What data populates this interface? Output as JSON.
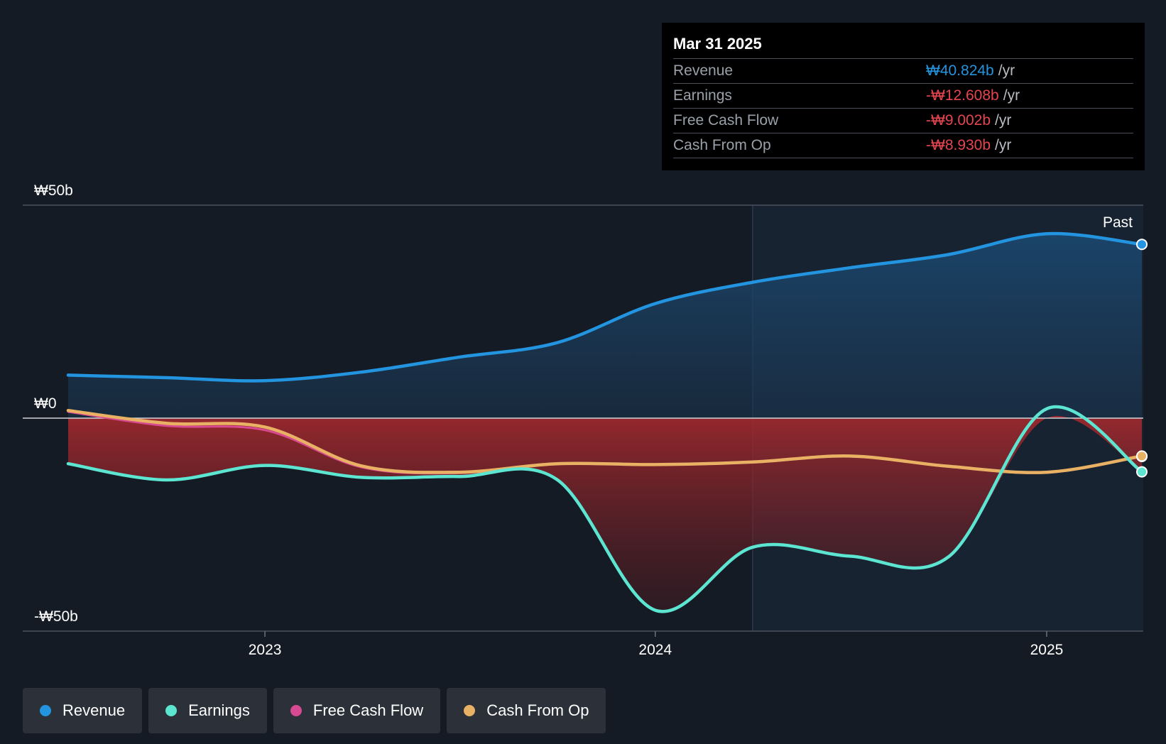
{
  "chart_data": {
    "type": "line",
    "x_ticks": [
      "2023",
      "2024",
      "2025"
    ],
    "y_ticks": [
      "₩50b",
      "₩0",
      "-₩50b"
    ],
    "ylim": [
      -50,
      50
    ],
    "past_label": "Past",
    "series": [
      {
        "name": "Revenue",
        "color": "#2394df",
        "x": [
          "2022-07-01",
          "2022-10-01",
          "2023-01-01",
          "2023-04-01",
          "2023-07-01",
          "2023-10-01",
          "2024-01-01",
          "2024-04-01",
          "2024-07-01",
          "2024-10-01",
          "2025-01-01",
          "2025-03-31"
        ],
        "values": [
          10.1,
          9.5,
          8.8,
          10.8,
          14.3,
          17.7,
          26.9,
          31.9,
          35.3,
          38.4,
          43.3,
          40.8
        ]
      },
      {
        "name": "Earnings",
        "color": "#5ce6d2",
        "x": [
          "2022-07-01",
          "2022-10-01",
          "2023-01-01",
          "2023-04-01",
          "2023-07-01",
          "2023-10-01",
          "2024-01-01",
          "2024-04-01",
          "2024-07-01",
          "2024-10-01",
          "2025-01-01",
          "2025-03-31"
        ],
        "values": [
          -10.7,
          -14.5,
          -11.1,
          -13.9,
          -13.7,
          -14.4,
          -45.1,
          -30.3,
          -32.4,
          -32.6,
          2.2,
          -12.6
        ]
      },
      {
        "name": "Free Cash Flow",
        "color": "#d74990",
        "x": [
          "2022-07-01",
          "2022-10-01",
          "2023-01-01",
          "2023-04-01",
          "2023-07-01",
          "2023-10-01",
          "2024-01-01",
          "2024-04-01",
          "2024-07-01",
          "2024-10-01",
          "2025-01-01",
          "2025-03-31"
        ],
        "values": [
          1.5,
          -1.8,
          -2.8,
          -11.5,
          -12.9,
          -10.8,
          -11.0,
          -10.4,
          -9.0,
          -11.4,
          -12.8,
          -9.0
        ]
      },
      {
        "name": "Cash From Op",
        "color": "#e9b163",
        "x": [
          "2022-07-01",
          "2022-10-01",
          "2023-01-01",
          "2023-04-01",
          "2023-07-01",
          "2023-10-01",
          "2024-01-01",
          "2024-04-01",
          "2024-07-01",
          "2024-10-01",
          "2025-01-01",
          "2025-03-31"
        ],
        "values": [
          1.8,
          -1.2,
          -2.1,
          -11.2,
          -12.7,
          -10.7,
          -10.9,
          -10.3,
          -8.9,
          -11.3,
          -12.7,
          -8.9
        ]
      }
    ]
  },
  "tooltip": {
    "date": "Mar 31 2025",
    "unit": "/yr",
    "rows": [
      {
        "label": "Revenue",
        "value": "₩40.824b",
        "color": "#2394df"
      },
      {
        "label": "Earnings",
        "value": "-₩12.608b",
        "color": "#e5454f"
      },
      {
        "label": "Free Cash Flow",
        "value": "-₩9.002b",
        "color": "#e5454f"
      },
      {
        "label": "Cash From Op",
        "value": "-₩8.930b",
        "color": "#e5454f"
      }
    ]
  },
  "legend": [
    {
      "label": "Revenue",
      "color": "#2394df"
    },
    {
      "label": "Earnings",
      "color": "#5ce6d2"
    },
    {
      "label": "Free Cash Flow",
      "color": "#d74990"
    },
    {
      "label": "Cash From Op",
      "color": "#e9b163"
    }
  ]
}
